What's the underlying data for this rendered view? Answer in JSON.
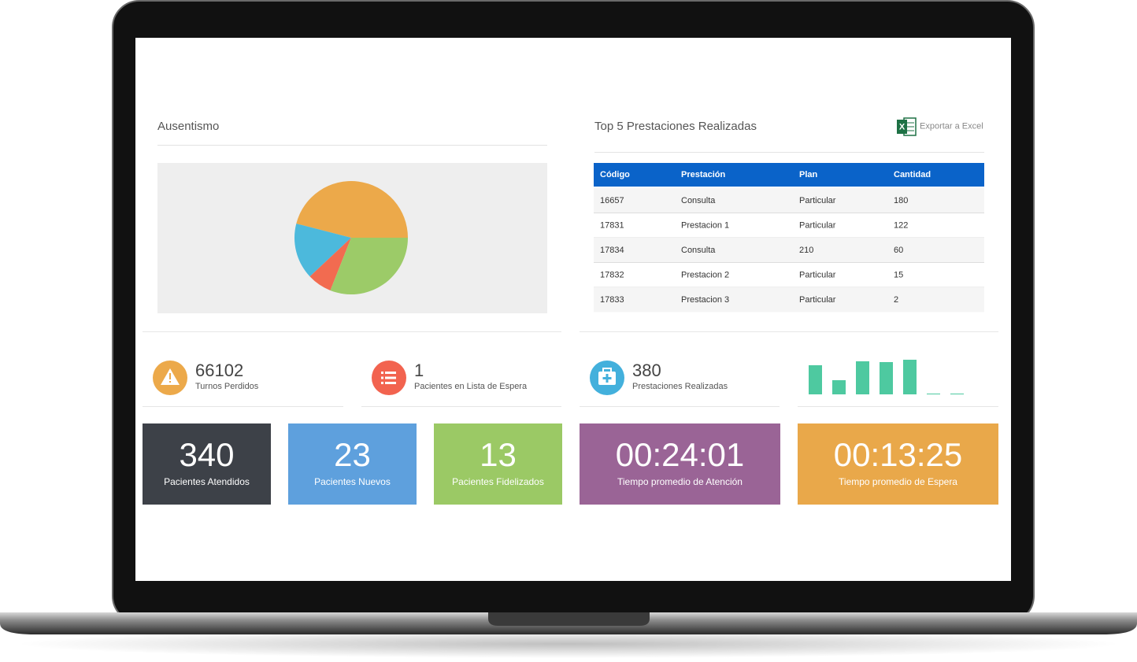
{
  "chart_data": [
    {
      "type": "pie",
      "title": "Ausentismo",
      "values": [
        46,
        16,
        7,
        31
      ],
      "colors": [
        "#eca94a",
        "#4cb9dc",
        "#f26b50",
        "#9ccb68"
      ]
    },
    {
      "type": "bar",
      "values": [
        37,
        18,
        42,
        41,
        44,
        1,
        1
      ],
      "color": "#4ec9a0"
    }
  ],
  "table": {
    "title": "Top 5 Prestaciones Realizadas",
    "export": "Exportar a Excel",
    "headers": [
      "Código",
      "Prestación",
      "Plan",
      "Cantidad"
    ],
    "rows": [
      [
        "16657",
        "Consulta",
        "Particular",
        "180"
      ],
      [
        "17831",
        "Prestacion 1",
        "Particular",
        "122"
      ],
      [
        "17834",
        "Consulta",
        "210",
        "60"
      ],
      [
        "17832",
        "Prestacion 2",
        "Particular",
        "15"
      ],
      [
        "17833",
        "Prestacion 3",
        "Particular",
        "2"
      ]
    ]
  },
  "stats": [
    {
      "value": "66102",
      "label": "Turnos Perdidos",
      "color": "#eca94a"
    },
    {
      "value": "1",
      "label": "Pacientes en Lista de Espera",
      "color": "#f2634f"
    },
    {
      "value": "380",
      "label": "Prestaciones Realizadas",
      "color": "#43b0dc"
    }
  ],
  "tiles": [
    {
      "value": "340",
      "label": "Pacientes Atendidos",
      "color": "#3d4148"
    },
    {
      "value": "23",
      "label": "Pacientes Nuevos",
      "color": "#5ea0dd"
    },
    {
      "value": "13",
      "label": "Pacientes Fidelizados",
      "color": "#9bc965"
    },
    {
      "value": "00:24:01",
      "label": "Tiempo promedio de Atención",
      "color": "#9a6496"
    },
    {
      "value": "00:13:25",
      "label": "Tiempo promedio de Espera",
      "color": "#e9a84a"
    }
  ]
}
